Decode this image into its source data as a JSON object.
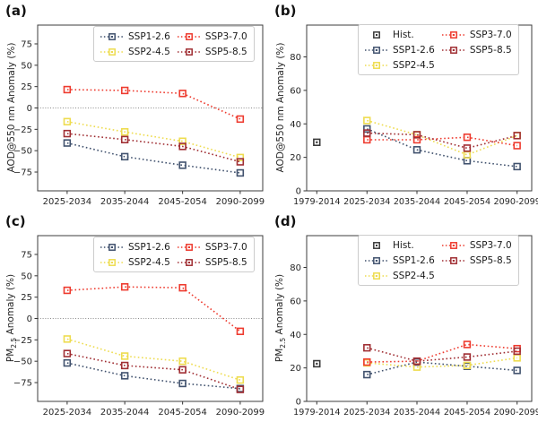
{
  "chart_data": [
    {
      "panel": "a",
      "type": "line",
      "title": "(a)",
      "ylabel": "AOD@550 nm Anomaly (%)",
      "xlabel": "",
      "ylim": [
        -97,
        97
      ],
      "yticks": [
        75,
        50,
        25,
        0,
        -25,
        -50,
        -75
      ],
      "zero_line": true,
      "grid": false,
      "legend_position": "upper right",
      "categories": [
        "2025-2034",
        "2035-2044",
        "2045-2054",
        "2090-2099"
      ],
      "series": [
        {
          "name": "SSP1-2.6",
          "color": "#41526e",
          "line": true,
          "values": [
            -41,
            -57,
            -67,
            -76
          ]
        },
        {
          "name": "SSP2-4.5",
          "color": "#eedc4f",
          "line": true,
          "values": [
            -16,
            -28,
            -39,
            -58
          ]
        },
        {
          "name": "SSP3-7.0",
          "color": "#ee3b2f",
          "line": true,
          "values": [
            21.5,
            20.5,
            17,
            -13
          ]
        },
        {
          "name": "SSP5-8.5",
          "color": "#a02e33",
          "line": true,
          "values": [
            -30,
            -37,
            -45,
            -63
          ]
        }
      ],
      "legend_columns": [
        [
          "SSP1-2.6",
          "SSP2-4.5"
        ],
        [
          "SSP3-7.0",
          "SSP5-8.5"
        ]
      ]
    },
    {
      "panel": "b",
      "type": "line",
      "title": "(b)",
      "ylabel": "AOD@550 nm Anomaly (%)",
      "xlabel": "",
      "ylim": [
        0,
        99
      ],
      "yticks": [
        0,
        20,
        40,
        60,
        80
      ],
      "zero_line": false,
      "grid": false,
      "legend_position": "upper right",
      "categories": [
        "1979-2014",
        "2025-2034",
        "2035-2044",
        "2045-2054",
        "2090-2099"
      ],
      "series": [
        {
          "name": "SSP1-2.6",
          "color": "#41526e",
          "line": true,
          "values": [
            null,
            37,
            24.5,
            18,
            14.5
          ]
        },
        {
          "name": "SSP2-4.5",
          "color": "#eedc4f",
          "line": true,
          "values": [
            null,
            42,
            33.5,
            21.5,
            33
          ]
        },
        {
          "name": "SSP3-7.0",
          "color": "#ee3b2f",
          "line": true,
          "values": [
            null,
            30.5,
            30.5,
            32,
            27
          ]
        },
        {
          "name": "SSP5-8.5",
          "color": "#a02e33",
          "line": true,
          "values": [
            null,
            34.5,
            33.5,
            25.5,
            33
          ]
        },
        {
          "name": "Hist.",
          "color": "#3a3a3a",
          "line": false,
          "values": [
            29,
            null,
            null,
            null,
            null
          ]
        }
      ],
      "legend_columns": [
        [
          "Hist.",
          "SSP1-2.6",
          "SSP2-4.5"
        ],
        [
          "SSP3-7.0",
          "SSP5-8.5"
        ]
      ]
    },
    {
      "panel": "c",
      "type": "line",
      "title": "(c)",
      "ylabel": "PM2.5 Anomaly (%)",
      "ylabel_parts": {
        "pre": "PM",
        "sub": "2.5",
        "post": " Anomaly (%)"
      },
      "xlabel": "",
      "ylim": [
        -97,
        97
      ],
      "yticks": [
        75,
        50,
        25,
        0,
        -25,
        -50,
        -75
      ],
      "zero_line": true,
      "grid": false,
      "legend_position": "upper right",
      "categories": [
        "2025-2034",
        "2035-2044",
        "2045-2054",
        "2090-2099"
      ],
      "series": [
        {
          "name": "SSP1-2.6",
          "color": "#41526e",
          "line": true,
          "values": [
            -52,
            -67,
            -76,
            -82
          ]
        },
        {
          "name": "SSP2-4.5",
          "color": "#eedc4f",
          "line": true,
          "values": [
            -24,
            -44,
            -50,
            -72
          ]
        },
        {
          "name": "SSP3-7.0",
          "color": "#ee3b2f",
          "line": true,
          "values": [
            33,
            37,
            36,
            -15
          ]
        },
        {
          "name": "SSP5-8.5",
          "color": "#a02e33",
          "line": true,
          "values": [
            -41,
            -55,
            -60,
            -83
          ]
        }
      ],
      "legend_columns": [
        [
          "SSP1-2.6",
          "SSP2-4.5"
        ],
        [
          "SSP3-7.0",
          "SSP5-8.5"
        ]
      ]
    },
    {
      "panel": "d",
      "type": "line",
      "title": "(d)",
      "ylabel": "PM2.5 Anomaly (%)",
      "ylabel_parts": {
        "pre": "PM",
        "sub": "2.5",
        "post": " Anomaly (%)"
      },
      "xlabel": "",
      "ylim": [
        0,
        99
      ],
      "yticks": [
        0,
        20,
        40,
        60,
        80
      ],
      "zero_line": false,
      "grid": false,
      "legend_position": "upper right",
      "categories": [
        "1979-2014",
        "2025-2034",
        "2035-2044",
        "2045-2054",
        "2090-2099"
      ],
      "series": [
        {
          "name": "SSP1-2.6",
          "color": "#41526e",
          "line": true,
          "values": [
            null,
            16,
            23.5,
            21,
            18.5
          ]
        },
        {
          "name": "SSP2-4.5",
          "color": "#eedc4f",
          "line": true,
          "values": [
            null,
            23,
            20.5,
            21.5,
            26
          ]
        },
        {
          "name": "SSP3-7.0",
          "color": "#ee3b2f",
          "line": true,
          "values": [
            null,
            23.5,
            24,
            34,
            31.5
          ]
        },
        {
          "name": "SSP5-8.5",
          "color": "#a02e33",
          "line": true,
          "values": [
            null,
            32,
            24,
            26.5,
            30
          ]
        },
        {
          "name": "Hist.",
          "color": "#3a3a3a",
          "line": false,
          "values": [
            22.5,
            null,
            null,
            null,
            null
          ]
        }
      ],
      "legend_columns": [
        [
          "Hist.",
          "SSP1-2.6",
          "SSP2-4.5"
        ],
        [
          "SSP3-7.0",
          "SSP5-8.5"
        ]
      ]
    }
  ]
}
